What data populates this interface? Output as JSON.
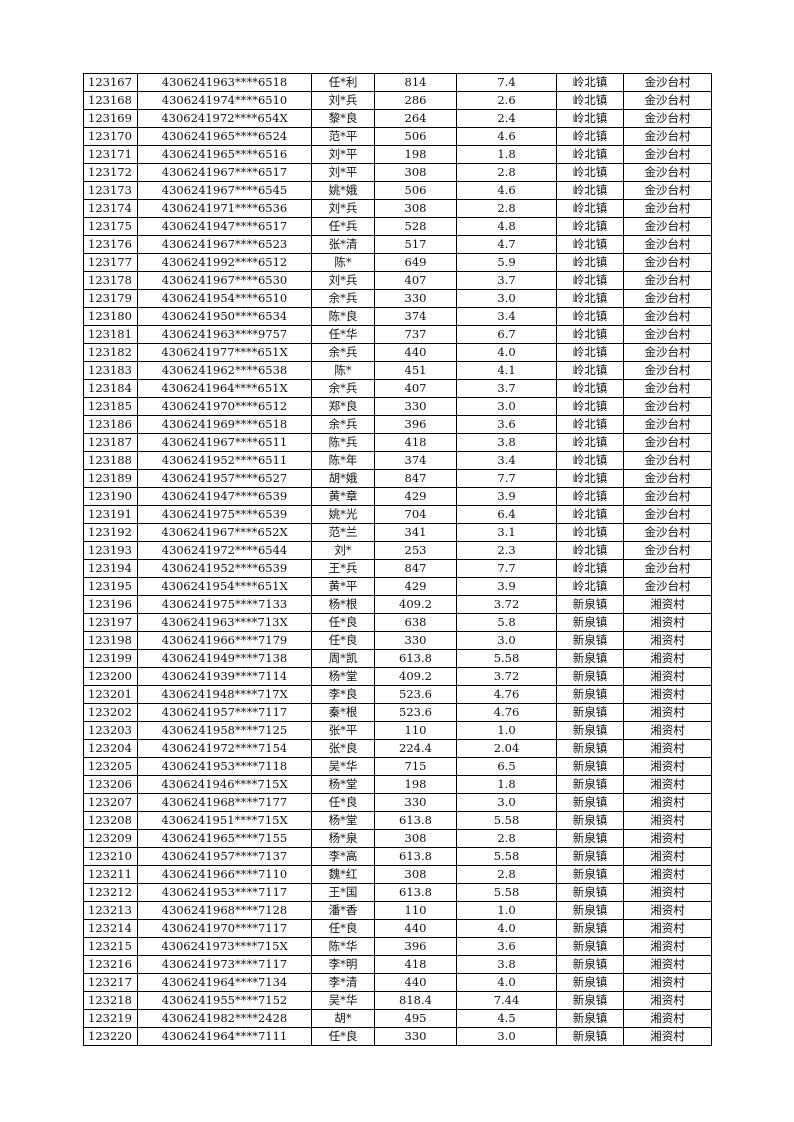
{
  "table": {
    "rows": [
      [
        "123167",
        "4306241963****6518",
        "任*利",
        "814",
        "7.4",
        "岭北镇",
        "金沙台村"
      ],
      [
        "123168",
        "4306241974****6510",
        "刘*兵",
        "286",
        "2.6",
        "岭北镇",
        "金沙台村"
      ],
      [
        "123169",
        "4306241972****654X",
        "黎*良",
        "264",
        "2.4",
        "岭北镇",
        "金沙台村"
      ],
      [
        "123170",
        "4306241965****6524",
        "范*平",
        "506",
        "4.6",
        "岭北镇",
        "金沙台村"
      ],
      [
        "123171",
        "4306241965****6516",
        "刘*平",
        "198",
        "1.8",
        "岭北镇",
        "金沙台村"
      ],
      [
        "123172",
        "4306241967****6517",
        "刘*平",
        "308",
        "2.8",
        "岭北镇",
        "金沙台村"
      ],
      [
        "123173",
        "4306241967****6545",
        "姚*娥",
        "506",
        "4.6",
        "岭北镇",
        "金沙台村"
      ],
      [
        "123174",
        "4306241971****6536",
        "刘*兵",
        "308",
        "2.8",
        "岭北镇",
        "金沙台村"
      ],
      [
        "123175",
        "4306241947****6517",
        "任*兵",
        "528",
        "4.8",
        "岭北镇",
        "金沙台村"
      ],
      [
        "123176",
        "4306241967****6523",
        "张*清",
        "517",
        "4.7",
        "岭北镇",
        "金沙台村"
      ],
      [
        "123177",
        "4306241992****6512",
        "陈*",
        "649",
        "5.9",
        "岭北镇",
        "金沙台村"
      ],
      [
        "123178",
        "4306241967****6530",
        "刘*兵",
        "407",
        "3.7",
        "岭北镇",
        "金沙台村"
      ],
      [
        "123179",
        "4306241954****6510",
        "余*兵",
        "330",
        "3.0",
        "岭北镇",
        "金沙台村"
      ],
      [
        "123180",
        "4306241950****6534",
        "陈*良",
        "374",
        "3.4",
        "岭北镇",
        "金沙台村"
      ],
      [
        "123181",
        "4306241963****9757",
        "任*华",
        "737",
        "6.7",
        "岭北镇",
        "金沙台村"
      ],
      [
        "123182",
        "4306241977****651X",
        "余*兵",
        "440",
        "4.0",
        "岭北镇",
        "金沙台村"
      ],
      [
        "123183",
        "4306241962****6538",
        "陈*",
        "451",
        "4.1",
        "岭北镇",
        "金沙台村"
      ],
      [
        "123184",
        "4306241964****651X",
        "余*兵",
        "407",
        "3.7",
        "岭北镇",
        "金沙台村"
      ],
      [
        "123185",
        "4306241970****6512",
        "郑*良",
        "330",
        "3.0",
        "岭北镇",
        "金沙台村"
      ],
      [
        "123186",
        "4306241969****6518",
        "余*兵",
        "396",
        "3.6",
        "岭北镇",
        "金沙台村"
      ],
      [
        "123187",
        "4306241967****6511",
        "陈*兵",
        "418",
        "3.8",
        "岭北镇",
        "金沙台村"
      ],
      [
        "123188",
        "4306241952****6511",
        "陈*年",
        "374",
        "3.4",
        "岭北镇",
        "金沙台村"
      ],
      [
        "123189",
        "4306241957****6527",
        "胡*娥",
        "847",
        "7.7",
        "岭北镇",
        "金沙台村"
      ],
      [
        "123190",
        "4306241947****6539",
        "黄*章",
        "429",
        "3.9",
        "岭北镇",
        "金沙台村"
      ],
      [
        "123191",
        "4306241975****6539",
        "姚*光",
        "704",
        "6.4",
        "岭北镇",
        "金沙台村"
      ],
      [
        "123192",
        "4306241967****652X",
        "范*兰",
        "341",
        "3.1",
        "岭北镇",
        "金沙台村"
      ],
      [
        "123193",
        "4306241972****6544",
        "刘*",
        "253",
        "2.3",
        "岭北镇",
        "金沙台村"
      ],
      [
        "123194",
        "4306241952****6539",
        "王*兵",
        "847",
        "7.7",
        "岭北镇",
        "金沙台村"
      ],
      [
        "123195",
        "4306241954****651X",
        "黄*平",
        "429",
        "3.9",
        "岭北镇",
        "金沙台村"
      ],
      [
        "123196",
        "4306241975****7133",
        "杨*根",
        "409.2",
        "3.72",
        "新泉镇",
        "湘资村"
      ],
      [
        "123197",
        "4306241963****713X",
        "任*良",
        "638",
        "5.8",
        "新泉镇",
        "湘资村"
      ],
      [
        "123198",
        "4306241966****7179",
        "任*良",
        "330",
        "3.0",
        "新泉镇",
        "湘资村"
      ],
      [
        "123199",
        "4306241949****7138",
        "周*凯",
        "613.8",
        "5.58",
        "新泉镇",
        "湘资村"
      ],
      [
        "123200",
        "4306241939****7114",
        "杨*堂",
        "409.2",
        "3.72",
        "新泉镇",
        "湘资村"
      ],
      [
        "123201",
        "4306241948****717X",
        "李*良",
        "523.6",
        "4.76",
        "新泉镇",
        "湘资村"
      ],
      [
        "123202",
        "4306241957****7117",
        "秦*根",
        "523.6",
        "4.76",
        "新泉镇",
        "湘资村"
      ],
      [
        "123203",
        "4306241958****7125",
        "张*平",
        "110",
        "1.0",
        "新泉镇",
        "湘资村"
      ],
      [
        "123204",
        "4306241972****7154",
        "张*良",
        "224.4",
        "2.04",
        "新泉镇",
        "湘资村"
      ],
      [
        "123205",
        "4306241953****7118",
        "吴*华",
        "715",
        "6.5",
        "新泉镇",
        "湘资村"
      ],
      [
        "123206",
        "4306241946****715X",
        "杨*堂",
        "198",
        "1.8",
        "新泉镇",
        "湘资村"
      ],
      [
        "123207",
        "4306241968****7177",
        "任*良",
        "330",
        "3.0",
        "新泉镇",
        "湘资村"
      ],
      [
        "123208",
        "4306241951****715X",
        "杨*堂",
        "613.8",
        "5.58",
        "新泉镇",
        "湘资村"
      ],
      [
        "123209",
        "4306241965****7155",
        "杨*泉",
        "308",
        "2.8",
        "新泉镇",
        "湘资村"
      ],
      [
        "123210",
        "4306241957****7137",
        "李*高",
        "613.8",
        "5.58",
        "新泉镇",
        "湘资村"
      ],
      [
        "123211",
        "4306241966****7110",
        "魏*红",
        "308",
        "2.8",
        "新泉镇",
        "湘资村"
      ],
      [
        "123212",
        "4306241953****7117",
        "王*国",
        "613.8",
        "5.58",
        "新泉镇",
        "湘资村"
      ],
      [
        "123213",
        "4306241968****7128",
        "潘*香",
        "110",
        "1.0",
        "新泉镇",
        "湘资村"
      ],
      [
        "123214",
        "4306241970****7117",
        "任*良",
        "440",
        "4.0",
        "新泉镇",
        "湘资村"
      ],
      [
        "123215",
        "4306241973****715X",
        "陈*华",
        "396",
        "3.6",
        "新泉镇",
        "湘资村"
      ],
      [
        "123216",
        "4306241973****7117",
        "李*明",
        "418",
        "3.8",
        "新泉镇",
        "湘资村"
      ],
      [
        "123217",
        "4306241964****7134",
        "李*清",
        "440",
        "4.0",
        "新泉镇",
        "湘资村"
      ],
      [
        "123218",
        "4306241955****7152",
        "吴*华",
        "818.4",
        "7.44",
        "新泉镇",
        "湘资村"
      ],
      [
        "123219",
        "4306241982****2428",
        "胡*",
        "495",
        "4.5",
        "新泉镇",
        "湘资村"
      ],
      [
        "123220",
        "4306241964****7111",
        "任*良",
        "330",
        "3.0",
        "新泉镇",
        "湘资村"
      ]
    ]
  }
}
